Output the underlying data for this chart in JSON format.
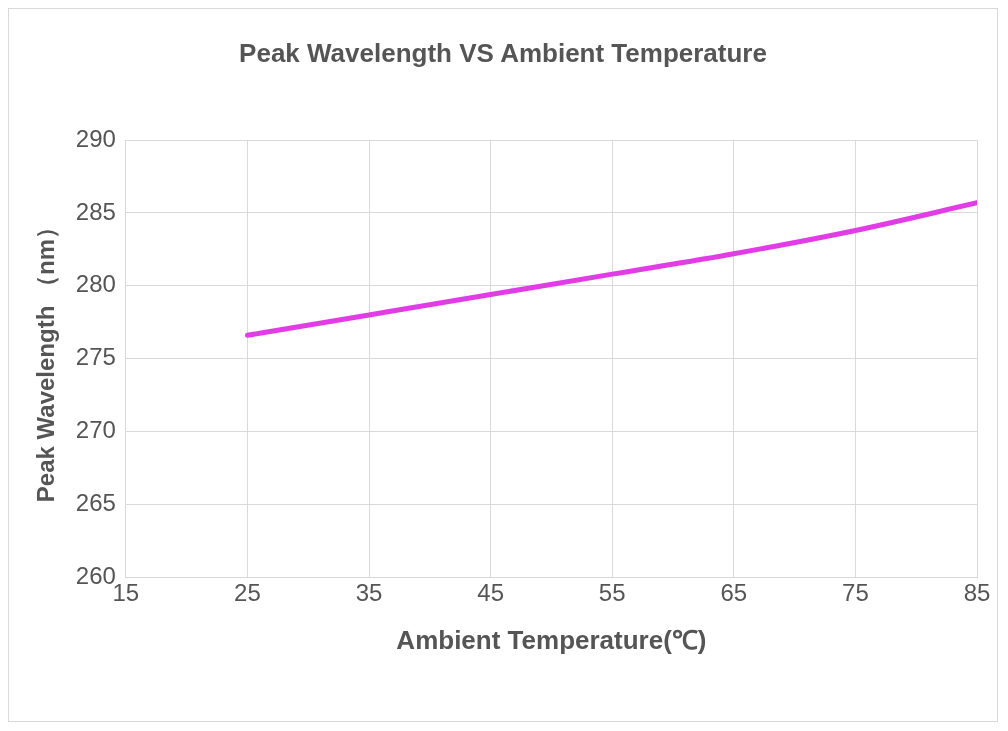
{
  "chart_data": {
    "type": "line",
    "title": "Peak Wavelength VS Ambient Temperature",
    "xlabel": "Ambient Temperature(℃)",
    "ylabel": "Peak Wavelength （nm）",
    "x": [
      25,
      35,
      45,
      55,
      65,
      75,
      85
    ],
    "series": [
      {
        "color": "#e23ce6",
        "values": [
          276.6,
          278.0,
          279.4,
          280.8,
          282.2,
          283.8,
          285.7
        ]
      }
    ],
    "xlim": [
      15,
      85
    ],
    "xticks": [
      15,
      25,
      35,
      45,
      55,
      65,
      75,
      85
    ],
    "ylim": [
      260,
      290
    ],
    "yticks": [
      260,
      265,
      270,
      275,
      280,
      285,
      290
    ],
    "grid": true,
    "legend": false,
    "marker": "none",
    "line_style": "solid"
  }
}
